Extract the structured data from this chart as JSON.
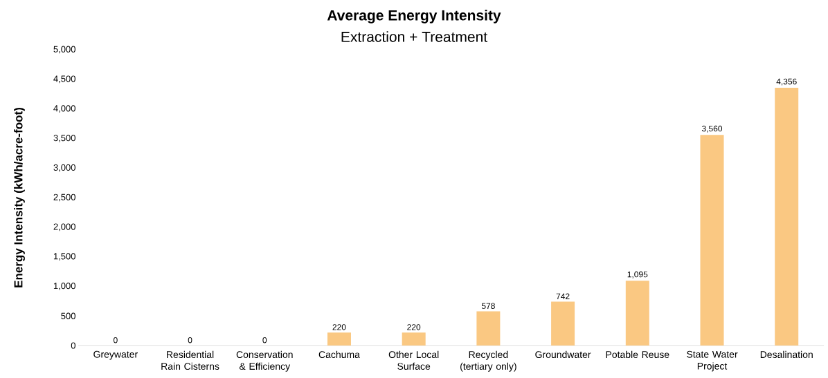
{
  "chart_data": {
    "type": "bar",
    "title": "Average Energy Intensity",
    "subtitle": "Extraction + Treatment",
    "ylabel": "Energy Intensity (kWh/acre-foot)",
    "categories": [
      "Greywater",
      "Residential Rain Cisterns",
      "Conservation & Efficiency",
      "Cachuma",
      "Other Local Surface",
      "Recycled (tertiary only)",
      "Groundwater",
      "Potable Reuse",
      "State Water Project",
      "Desalination"
    ],
    "values": [
      0,
      0,
      0,
      220,
      220,
      578,
      742,
      1095,
      3560,
      4356
    ],
    "value_labels": [
      "0",
      "0",
      "0",
      "220",
      "220",
      "578",
      "742",
      "1,095",
      "3,560",
      "4,356"
    ],
    "color": "#fac882",
    "ylim": [
      0,
      5000
    ],
    "yticks": [
      0,
      500,
      {
        "value": 1000,
        "label": "1,000"
      },
      {
        "value": 1500,
        "label": "1,500"
      },
      {
        "value": 2000,
        "label": "2,000"
      },
      {
        "value": 2500,
        "label": "2,500"
      },
      {
        "value": 3000,
        "label": "3,000"
      },
      {
        "value": 3500,
        "label": "3,500"
      },
      {
        "value": 4000,
        "label": "4,000"
      },
      {
        "value": 4500,
        "label": "4,500"
      },
      {
        "value": 5000,
        "label": "5,000"
      }
    ],
    "grid": false
  }
}
